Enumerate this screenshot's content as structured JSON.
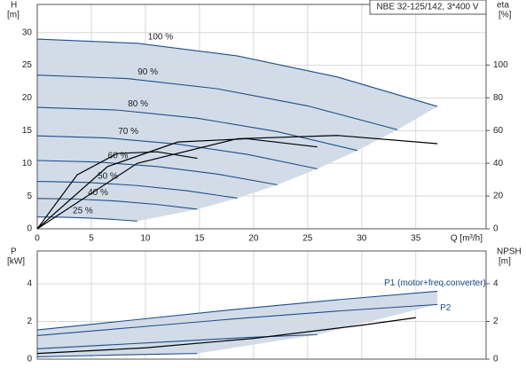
{
  "chart_data": [
    {
      "type": "line",
      "title": "NBE 32-125/142, 3*400 V",
      "y_label": "H",
      "y_unit": "[m]",
      "y2_label": "eta",
      "y2_unit": "[%]",
      "x_label": "Q [m³/h]",
      "xlim": [
        0,
        41.5
      ],
      "xticks": [
        0,
        5,
        10,
        15,
        20,
        25,
        30,
        35
      ],
      "x_tick_labels": true,
      "ylim": [
        0,
        34.3
      ],
      "yticks": [
        0,
        5,
        10,
        15,
        20,
        25,
        30
      ],
      "y2lim": [
        0,
        137
      ],
      "y2ticks": [
        0,
        20,
        40,
        60,
        80,
        100
      ],
      "grid": true,
      "area_color": "#c9d6e4",
      "series": [
        {
          "name": "100 %",
          "color": "#1f4e8c",
          "x": [
            0,
            9.25,
            18.5,
            27.75,
            37
          ],
          "values": [
            29,
            28.36,
            26.43,
            23.21,
            18.7
          ]
        },
        {
          "name": "90 %",
          "color": "#1f4e8c",
          "x": [
            0,
            8.3,
            16.6,
            25,
            33.3
          ],
          "values": [
            23.49,
            22.97,
            21.42,
            18.79,
            15.15
          ]
        },
        {
          "name": "80 %",
          "color": "#1f4e8c",
          "x": [
            0,
            7.4,
            14.8,
            22.2,
            29.6
          ],
          "values": [
            18.56,
            18.15,
            16.91,
            14.85,
            11.97
          ]
        },
        {
          "name": "70 %",
          "color": "#1f4e8c",
          "x": [
            0,
            6.5,
            13,
            19.4,
            25.9
          ],
          "values": [
            14.21,
            13.89,
            12.94,
            11.38,
            9.17
          ]
        },
        {
          "name": "60 %",
          "color": "#1f4e8c",
          "x": [
            0,
            5.55,
            11.1,
            16.65,
            22.2
          ],
          "values": [
            10.44,
            10.21,
            9.51,
            8.36,
            6.73
          ]
        },
        {
          "name": "50 %",
          "color": "#1f4e8c",
          "x": [
            0,
            4.6,
            9.25,
            13.9,
            18.5
          ],
          "values": [
            7.25,
            7.09,
            6.61,
            5.8,
            4.68
          ]
        },
        {
          "name": "40 %",
          "color": "#1f4e8c",
          "x": [
            0,
            3.7,
            7.4,
            11.1,
            14.8
          ],
          "values": [
            4.64,
            4.54,
            4.23,
            3.71,
            2.99
          ]
        },
        {
          "name": "25 %",
          "color": "#1f4e8c",
          "x": [
            0,
            2.3,
            4.6,
            6.9,
            9.25
          ],
          "values": [
            1.81,
            1.77,
            1.65,
            1.45,
            1.17
          ]
        },
        {
          "color": "#000000",
          "axis": "y2",
          "x": [
            0,
            9.25,
            18.5,
            27.75,
            37
          ],
          "values": [
            0,
            40,
            55,
            57,
            52
          ]
        },
        {
          "color": "#000000",
          "axis": "y2",
          "x": [
            0,
            6.5,
            13,
            19.4,
            25.9
          ],
          "values": [
            0,
            38,
            53,
            55,
            50
          ]
        },
        {
          "color": "#000000",
          "axis": "y2",
          "x": [
            0,
            3.7,
            7.4,
            11.1,
            14.8
          ],
          "values": [
            0,
            33,
            46,
            47,
            43
          ]
        }
      ]
    },
    {
      "type": "line",
      "y_label": "P",
      "y_unit": "[kW]",
      "y2_label": "NPSH",
      "y2_unit": "[m]",
      "xlim": [
        0,
        41.5
      ],
      "xticks": [
        0,
        5,
        10,
        15,
        20,
        25,
        30,
        35
      ],
      "x_tick_labels": false,
      "ylim": [
        0,
        5.74
      ],
      "yticks": [
        0,
        2,
        4
      ],
      "y2lim": [
        0,
        5.74
      ],
      "y2ticks": [
        0,
        2,
        4
      ],
      "grid": true,
      "area_color": "#c9d6e4",
      "series": [
        {
          "name": "P1 (motor+freq.converter)",
          "color": "#1f4e8c",
          "x": [
            0,
            9.25,
            18.5,
            27.75,
            37
          ],
          "values": [
            1.55,
            2.1,
            2.65,
            3.15,
            3.6
          ]
        },
        {
          "name": "P2",
          "color": "#1f4e8c",
          "x": [
            0,
            9.25,
            18.5,
            27.75,
            37
          ],
          "values": [
            1.25,
            1.7,
            2.15,
            2.55,
            2.9
          ]
        },
        {
          "color": "#1f4e8c",
          "x": [
            0,
            6.5,
            13,
            19.4,
            25.9
          ],
          "values": [
            0.55,
            0.75,
            0.95,
            1.15,
            1.3
          ]
        },
        {
          "color": "#1f4e8c",
          "x": [
            0,
            3.7,
            7.4,
            11.1,
            14.8
          ],
          "values": [
            0.12,
            0.17,
            0.22,
            0.26,
            0.3
          ]
        },
        {
          "color": "#000000",
          "axis": "y2",
          "x": [
            0,
            10,
            20,
            30,
            35
          ],
          "values": [
            0.3,
            0.6,
            1.1,
            1.8,
            2.2
          ]
        }
      ]
    }
  ]
}
